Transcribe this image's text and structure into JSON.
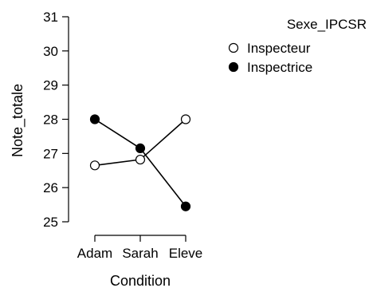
{
  "chart_data": {
    "type": "line",
    "xlabel": "Condition",
    "ylabel": "Note_totale",
    "categories": [
      "Adam",
      "Sarah",
      "Eleve"
    ],
    "ylim": [
      25,
      31
    ],
    "yticks": [
      25,
      26,
      27,
      28,
      29,
      30,
      31
    ],
    "grid": false,
    "legend": {
      "title": "Sexe_IPCSR",
      "placement": "top-right"
    },
    "series": [
      {
        "name": "Inspecteur",
        "marker": "open-circle",
        "values": [
          26.65,
          26.82,
          28.0
        ]
      },
      {
        "name": "Inspectrice",
        "marker": "filled-circle",
        "values": [
          28.0,
          27.15,
          25.45
        ]
      }
    ]
  }
}
